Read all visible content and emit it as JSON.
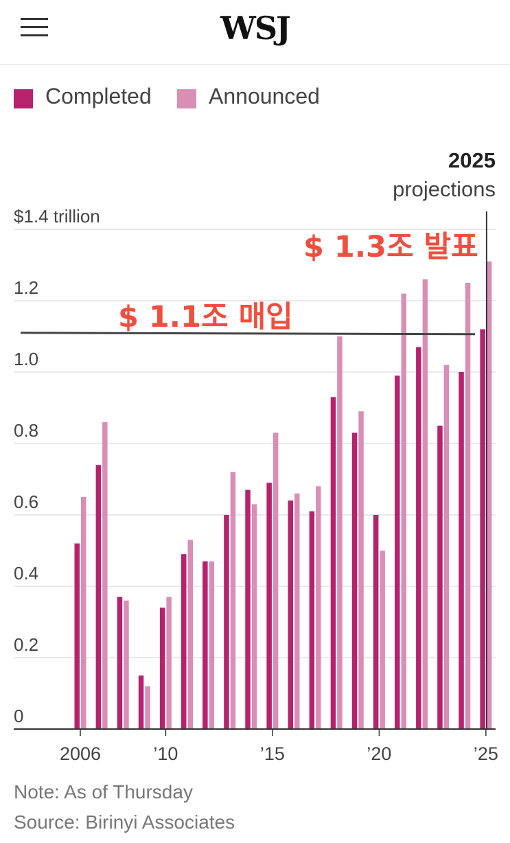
{
  "header": {
    "logo": "WSJ",
    "menu_icon": "hamburger-menu-icon"
  },
  "legend": {
    "completed_label": "Completed",
    "announced_label": "Announced",
    "completed_color": "#b5236f",
    "announced_color": "#d98fb5"
  },
  "projection_label": {
    "year": "2025",
    "text": "projections"
  },
  "annotations": {
    "purchase": "$ 1.1조 매입",
    "announce": "$ 1.3조 발표",
    "annotation_color": "#f04e3e"
  },
  "notes": {
    "note": "Note: As of Thursday",
    "source": "Source: Birinyi Associates"
  },
  "chart_data": {
    "type": "bar",
    "categories": [
      "2006",
      "2007",
      "2008",
      "2009",
      "2010",
      "2011",
      "2012",
      "2013",
      "2014",
      "2015",
      "2016",
      "2017",
      "2018",
      "2019",
      "2020",
      "2021",
      "2022",
      "2023",
      "2024",
      "2025"
    ],
    "series": [
      {
        "name": "Completed",
        "values": [
          0.52,
          0.74,
          0.37,
          0.15,
          0.34,
          0.49,
          0.47,
          0.6,
          0.67,
          0.69,
          0.64,
          0.61,
          0.93,
          0.83,
          0.6,
          0.99,
          1.07,
          0.85,
          1.0,
          1.12
        ]
      },
      {
        "name": "Announced",
        "values": [
          0.65,
          0.86,
          0.36,
          0.12,
          0.37,
          0.53,
          0.47,
          0.72,
          0.63,
          0.83,
          0.66,
          0.68,
          1.1,
          0.89,
          0.5,
          1.22,
          1.26,
          1.02,
          1.25,
          1.31
        ]
      }
    ],
    "ylim": [
      0,
      1.4
    ],
    "yticks": [
      0,
      0.2,
      0.4,
      0.6,
      0.8,
      1.0,
      1.2,
      1.4
    ],
    "ytick_labels": [
      "0",
      "0.2",
      "0.4",
      "0.6",
      "0.8",
      "1.0",
      "1.2",
      "$1.4 trillion"
    ],
    "xtick_labels": [
      {
        "category": "2006",
        "label": "2006"
      },
      {
        "category": "2010",
        "label": "’10"
      },
      {
        "category": "2015",
        "label": "’15"
      },
      {
        "category": "2020",
        "label": "’20"
      },
      {
        "category": "2025",
        "label": "’25"
      }
    ],
    "reference_line": {
      "value": 1.11,
      "label": "$ 1.1조 매입"
    },
    "grid": true,
    "legend_position": "top-left"
  }
}
